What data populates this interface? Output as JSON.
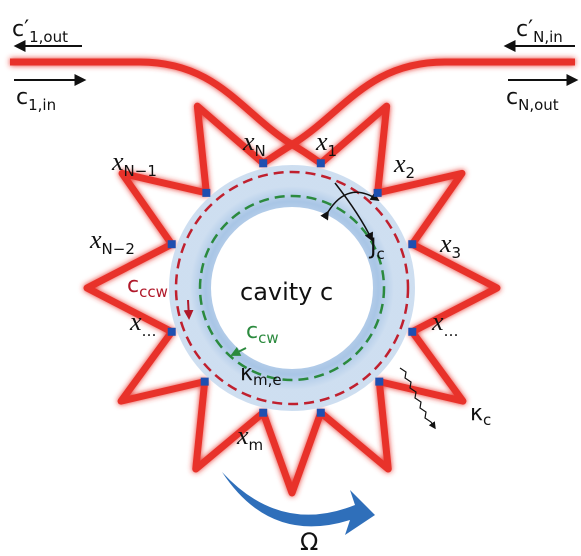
{
  "bus": {
    "left_out": {
      "main": "c′",
      "sub": "1,out"
    },
    "left_in": {
      "main": "c",
      "sub": "1,in"
    },
    "right_in": {
      "main": "c′",
      "sub": "N,in"
    },
    "right_out": {
      "main": "c",
      "sub": "N,out"
    }
  },
  "nodes": [
    {
      "main": "x",
      "sub": "N"
    },
    {
      "main": "x",
      "sub": "1"
    },
    {
      "main": "x",
      "sub": "2"
    },
    {
      "main": "x",
      "sub": "N−1"
    },
    {
      "main": "x",
      "sub": "3"
    },
    {
      "main": "x",
      "sub": "N−2"
    },
    {
      "main": "x",
      "sub": "…"
    },
    {
      "main": "x",
      "sub": "…"
    },
    {
      "main": "x",
      "sub": "m"
    }
  ],
  "cavity": "cavity  c",
  "modes": {
    "ccw": {
      "main": "c",
      "sub": "ccw"
    },
    "cw": {
      "main": "c",
      "sub": "cw"
    }
  },
  "couplings": {
    "J": {
      "main": "J",
      "sub": "c"
    },
    "kappa_me": {
      "main": "κ",
      "sub": "m,e"
    },
    "kappa_c": {
      "main": "κ",
      "sub": "c"
    }
  },
  "rotation": "Ω"
}
